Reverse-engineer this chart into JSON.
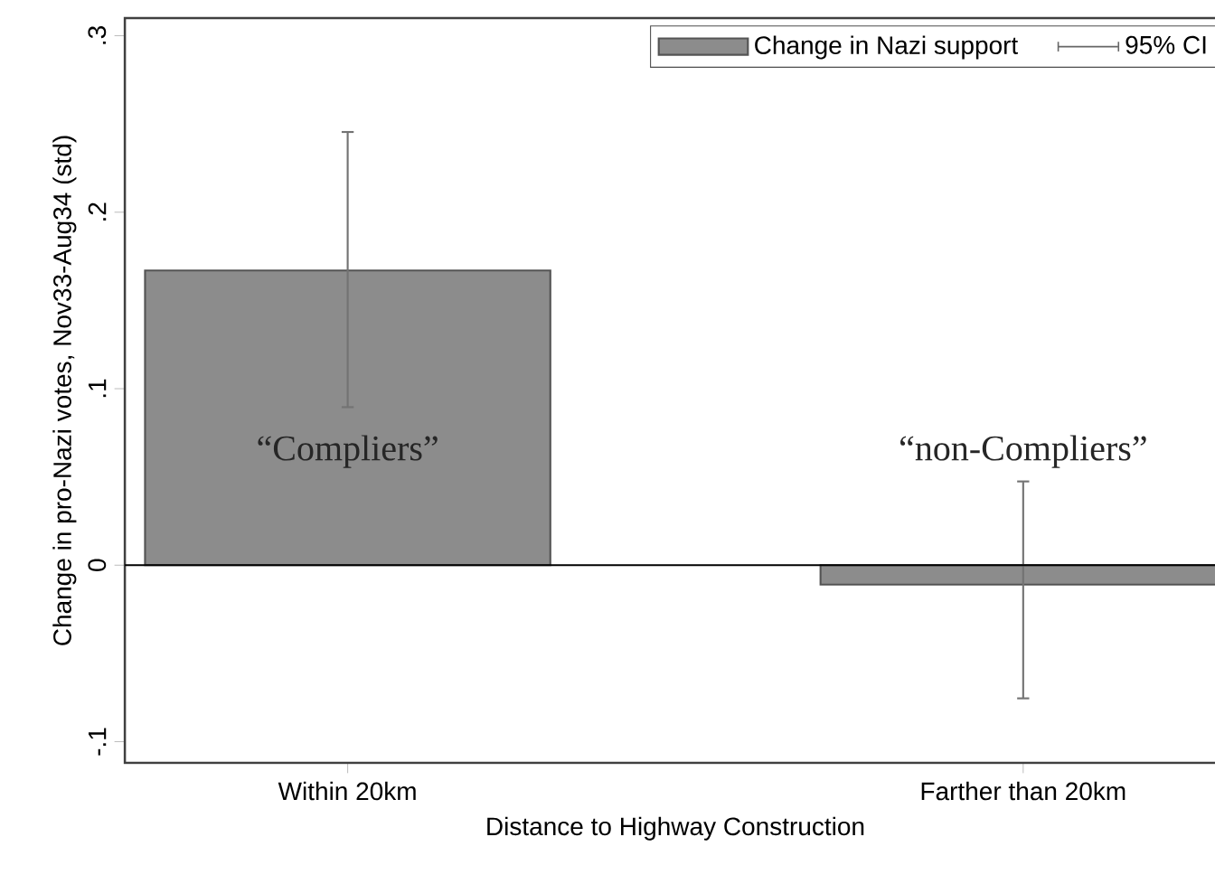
{
  "chart_data": {
    "type": "bar",
    "xlabel": "Distance to Highway Construction",
    "ylabel": "Change in pro-Nazi votes, Nov33-Aug34 (std)",
    "categories": [
      "Within 20km",
      "Farther than 20km"
    ],
    "series": [
      {
        "name": "Change in Nazi support",
        "color": "#8c8c8c",
        "values": [
          0.167,
          -0.011
        ],
        "errors": [
          [
            0.089,
            0.246
          ],
          [
            -0.076,
            0.048
          ]
        ]
      }
    ],
    "ylim": [
      -0.112,
      0.31
    ],
    "yticks": [
      {
        "value": -0.1,
        "label": "-.1"
      },
      0,
      {
        "value": 0.1,
        "label": ".1"
      },
      {
        "value": 0.2,
        "label": ".2"
      },
      {
        "value": 0.3,
        "label": ".3"
      }
    ],
    "ref_lines": [
      {
        "axis": "y",
        "value": 0
      }
    ],
    "annotations": [
      "“Compliers”",
      "“non-Compliers”",
      "95% CI"
    ],
    "legend": "top right",
    "grid": false
  }
}
